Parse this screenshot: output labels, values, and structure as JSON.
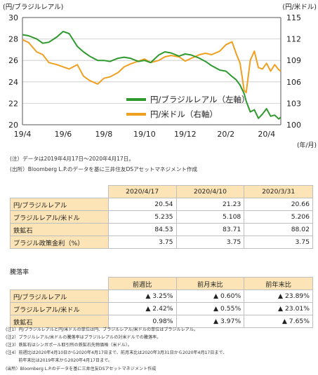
{
  "chart_data": {
    "type": "line",
    "left_axis_label": "(円/ブラジルレアル)",
    "right_axis_label": "(円/米ドル)",
    "x_unit_label": "(年/月)",
    "x_ticks": [
      "19/4",
      "19/6",
      "19/8",
      "19/10",
      "19/12",
      "20/2",
      "20/4"
    ],
    "y_left_ticks": [
      "30",
      "28",
      "26",
      "24",
      "22",
      "20"
    ],
    "y_right_ticks": [
      "115",
      "112",
      "109",
      "106",
      "103",
      "100"
    ],
    "ylim_left": [
      20,
      30
    ],
    "ylim_right": [
      100,
      115
    ],
    "xlim_months": [
      0,
      12.7
    ],
    "grid": "horizontal",
    "legend_position": "inside-right",
    "series": [
      {
        "name": "円/ブラジルレアル（左軸）",
        "axis": "left",
        "color": "#2e9a2e",
        "x_months": [
          0,
          0.3,
          0.7,
          1.0,
          1.3,
          1.7,
          2.0,
          2.3,
          2.7,
          3.0,
          3.3,
          3.7,
          4.0,
          4.3,
          4.7,
          5.0,
          5.3,
          5.7,
          6.0,
          6.3,
          6.7,
          7.0,
          7.3,
          7.7,
          8.0,
          8.3,
          8.7,
          9.0,
          9.3,
          9.7,
          10.0,
          10.3,
          10.5,
          10.7,
          10.9,
          11.0,
          11.2,
          11.4,
          11.6,
          11.8,
          12.0,
          12.2,
          12.4,
          12.6,
          12.7
        ],
        "values": [
          28.4,
          28.3,
          28.0,
          27.6,
          27.7,
          28.2,
          28.7,
          28.5,
          27.3,
          26.8,
          26.4,
          26.0,
          26.0,
          25.9,
          26.2,
          26.3,
          26.2,
          25.9,
          26.0,
          25.8,
          26.5,
          26.8,
          26.7,
          26.4,
          26.6,
          26.5,
          26.2,
          25.9,
          25.5,
          25.1,
          25.0,
          24.5,
          24.2,
          23.7,
          22.9,
          22.2,
          21.2,
          21.4,
          20.6,
          21.0,
          21.5,
          20.8,
          20.9,
          20.54,
          20.7
        ]
      },
      {
        "name": "円/米ドル（右軸）",
        "axis": "right",
        "color": "#f0a020",
        "x_months": [
          0,
          0.3,
          0.7,
          1.0,
          1.3,
          1.7,
          2.0,
          2.3,
          2.7,
          3.0,
          3.3,
          3.7,
          4.0,
          4.3,
          4.7,
          5.0,
          5.3,
          5.7,
          6.0,
          6.3,
          6.7,
          7.0,
          7.3,
          7.7,
          8.0,
          8.3,
          8.7,
          9.0,
          9.3,
          9.7,
          10.0,
          10.3,
          10.5,
          10.7,
          10.9,
          11.0,
          11.2,
          11.4,
          11.6,
          11.8,
          12.0,
          12.2,
          12.4,
          12.6,
          12.7
        ],
        "values": [
          111.9,
          111.5,
          110.2,
          109.8,
          108.7,
          108.4,
          108.1,
          107.8,
          108.4,
          106.8,
          106.2,
          105.7,
          106.5,
          106.7,
          107.3,
          108.1,
          108.5,
          108.9,
          109.2,
          108.7,
          109.0,
          109.5,
          109.7,
          109.5,
          108.9,
          109.3,
          109.8,
          110.0,
          109.8,
          110.3,
          111.2,
          111.6,
          110.0,
          108.6,
          104.8,
          104.5,
          109.0,
          110.3,
          108.0,
          107.8,
          108.6,
          107.5,
          108.4,
          107.7,
          107.5
        ]
      }
    ]
  },
  "notes_chart": {
    "note1": "(注）データは2019年4月17日～2020年4月17日。",
    "source": "(出所）Bloomberg L.P.のデータを基に三井住友DSアセットマネジメント作成"
  },
  "table1": {
    "headers": [
      "",
      "2020/4/17",
      "2020/4/10",
      "2020/3/31"
    ],
    "rows": [
      [
        "円/ブラジルレアル",
        "20.54",
        "21.23",
        "20.66"
      ],
      [
        "ブラジルレアル/米ドル",
        "5.235",
        "5.108",
        "5.206"
      ],
      [
        "鉄鉱石",
        "84.53",
        "83.71",
        "88.02"
      ],
      [
        "ブラジル政策金利（%）",
        "3.75",
        "3.75",
        "3.75"
      ]
    ]
  },
  "section_label": "騰落率",
  "table2": {
    "headers": [
      "",
      "前週比",
      "前月末比",
      "前年末比"
    ],
    "rows": [
      [
        "円/ブラジルレアル",
        "▲ 3.25%",
        "▲ 0.60%",
        "▲ 23.89%"
      ],
      [
        "ブラジルレアル/米ドル",
        "▲ 2.42%",
        "▲ 0.55%",
        "▲ 23.01%"
      ],
      [
        "鉄鉱石",
        "0.98%",
        "▲ 3.97%",
        "▲ 7.65%"
      ]
    ]
  },
  "footnotes": [
    "(注1）円/ブラジルレアルと円/米ドルの単位は円、ブラジルレアル/米ドルの単位はブラジルレアル。",
    "(注2）ブラジルレアル/米ドルの騰落率はブラジルレアルの対米ドルでの騰落率。",
    "(注3）鉄鉱石はシンガポール取引所の鉄鉱石先物価格（米ドル）。",
    "(注4）前週比は2020年4月10日から2020年4月17日まで、前月末比は2020年3月31日から2020年4月17日まで、",
    "　　　前年末比は2019年末から2020年4月17日まで。",
    "(出所）Bloomberg L.P.のデータを基に三井住友DSアセットマネジメント作成"
  ],
  "colors": {
    "table_header_bg": "#fce4b6",
    "brl_line": "#2e9a2e",
    "usd_line": "#f0a020"
  }
}
